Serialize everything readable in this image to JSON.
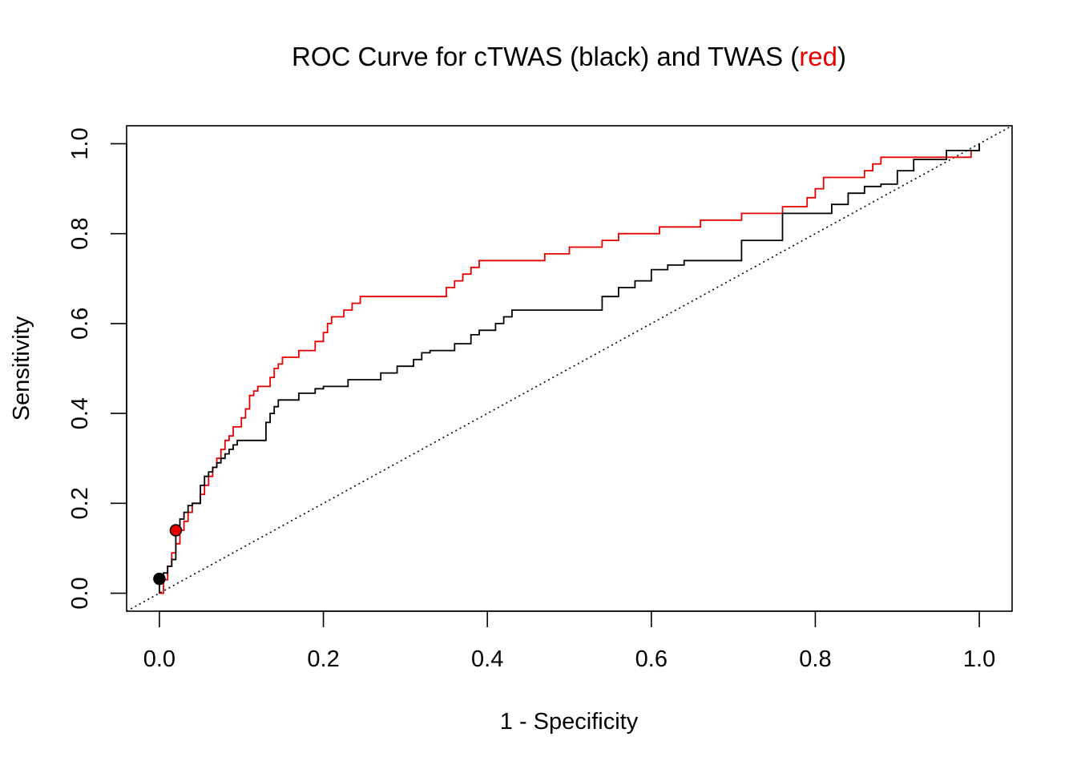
{
  "chart_data": {
    "type": "line",
    "title": {
      "prefix": "ROC Curve for cTWAS (black) and TWAS (",
      "highlight": "red",
      "suffix": ")",
      "highlight_color": "#e60000"
    },
    "xlabel": "1 - Specificity",
    "ylabel": "Sensitivity",
    "xlim": [
      -0.04,
      1.04
    ],
    "ylim": [
      -0.04,
      1.04
    ],
    "x_ticks": [
      "0.0",
      "0.2",
      "0.4",
      "0.6",
      "0.8",
      "1.0"
    ],
    "y_ticks": [
      "0.0",
      "0.2",
      "0.4",
      "0.6",
      "0.8",
      "1.0"
    ],
    "grid": false,
    "reference_line": {
      "style": "dotted",
      "x": [
        -0.04,
        1.04
      ],
      "y": [
        -0.04,
        1.04
      ]
    },
    "series": [
      {
        "name": "cTWAS",
        "color": "#000000",
        "step": true,
        "x": [
          0,
          0,
          0.005,
          0.01,
          0.015,
          0.02,
          0.02,
          0.025,
          0.03,
          0.035,
          0.04,
          0.05,
          0.055,
          0.06,
          0.065,
          0.07,
          0.075,
          0.08,
          0.085,
          0.09,
          0.095,
          0.1,
          0.13,
          0.135,
          0.14,
          0.145,
          0.15,
          0.17,
          0.18,
          0.19,
          0.2,
          0.22,
          0.23,
          0.26,
          0.27,
          0.28,
          0.29,
          0.3,
          0.31,
          0.32,
          0.33,
          0.35,
          0.36,
          0.38,
          0.39,
          0.41,
          0.42,
          0.43,
          0.44,
          0.46,
          0.52,
          0.54,
          0.56,
          0.58,
          0.6,
          0.62,
          0.64,
          0.66,
          0.69,
          0.71,
          0.76,
          0.8,
          0.82,
          0.84,
          0.86,
          0.88,
          0.9,
          0.92,
          0.96,
          1.0
        ],
        "y": [
          0,
          0.03,
          0.045,
          0.06,
          0.075,
          0.09,
          0.14,
          0.165,
          0.18,
          0.195,
          0.2,
          0.24,
          0.26,
          0.27,
          0.28,
          0.29,
          0.3,
          0.31,
          0.32,
          0.33,
          0.34,
          0.34,
          0.38,
          0.4,
          0.415,
          0.43,
          0.43,
          0.445,
          0.445,
          0.455,
          0.46,
          0.46,
          0.475,
          0.475,
          0.49,
          0.49,
          0.505,
          0.505,
          0.52,
          0.535,
          0.54,
          0.54,
          0.555,
          0.575,
          0.585,
          0.6,
          0.615,
          0.63,
          0.63,
          0.63,
          0.63,
          0.66,
          0.68,
          0.695,
          0.72,
          0.73,
          0.74,
          0.74,
          0.74,
          0.785,
          0.845,
          0.845,
          0.865,
          0.89,
          0.905,
          0.91,
          0.94,
          0.965,
          0.985,
          1.0
        ]
      },
      {
        "name": "TWAS",
        "color": "#e60000",
        "step": true,
        "x": [
          0,
          0.005,
          0.01,
          0.015,
          0.02,
          0.025,
          0.03,
          0.035,
          0.04,
          0.05,
          0.055,
          0.06,
          0.065,
          0.07,
          0.075,
          0.08,
          0.085,
          0.09,
          0.095,
          0.1,
          0.105,
          0.11,
          0.115,
          0.12,
          0.13,
          0.135,
          0.14,
          0.145,
          0.15,
          0.16,
          0.17,
          0.18,
          0.19,
          0.2,
          0.205,
          0.21,
          0.225,
          0.235,
          0.245,
          0.25,
          0.35,
          0.36,
          0.37,
          0.38,
          0.39,
          0.41,
          0.47,
          0.5,
          0.52,
          0.54,
          0.56,
          0.61,
          0.66,
          0.71,
          0.76,
          0.79,
          0.8,
          0.81,
          0.86,
          0.87,
          0.88,
          0.9,
          0.94,
          0.99,
          1.0
        ],
        "y": [
          0,
          0.03,
          0.06,
          0.09,
          0.11,
          0.14,
          0.16,
          0.18,
          0.2,
          0.22,
          0.24,
          0.26,
          0.28,
          0.3,
          0.32,
          0.34,
          0.35,
          0.37,
          0.37,
          0.39,
          0.41,
          0.44,
          0.45,
          0.46,
          0.46,
          0.48,
          0.5,
          0.51,
          0.525,
          0.525,
          0.54,
          0.54,
          0.56,
          0.58,
          0.6,
          0.615,
          0.63,
          0.645,
          0.66,
          0.66,
          0.68,
          0.695,
          0.71,
          0.725,
          0.74,
          0.74,
          0.755,
          0.77,
          0.77,
          0.785,
          0.8,
          0.815,
          0.83,
          0.845,
          0.86,
          0.88,
          0.9,
          0.925,
          0.94,
          0.955,
          0.97,
          0.97,
          0.97,
          0.985,
          1.0
        ]
      }
    ],
    "markers": [
      {
        "series": "cTWAS",
        "x": 0.0,
        "y": 0.032,
        "fill": "#000000"
      },
      {
        "series": "TWAS",
        "x": 0.02,
        "y": 0.14,
        "fill": "#e60000"
      }
    ]
  }
}
